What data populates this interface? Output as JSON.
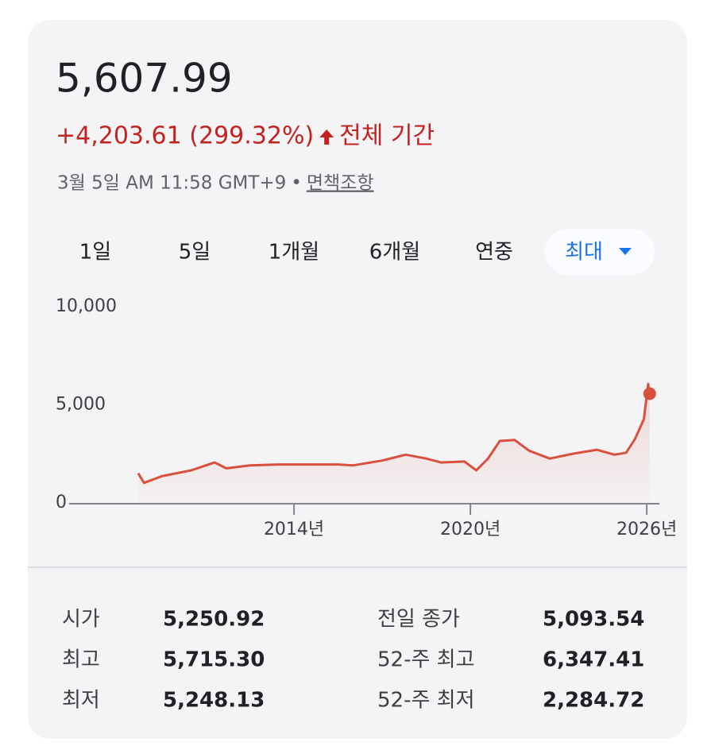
{
  "header": {
    "price": "5,607.99",
    "change": "+4,203.61 (299.32%)",
    "period": "전체 기간",
    "timestamp": "3월 5일 AM 11:58 GMT+9",
    "separator": "•",
    "disclaimer": "면책조항"
  },
  "tabs": {
    "items": [
      "1일",
      "5일",
      "1개월",
      "6개월",
      "연중",
      "최대"
    ],
    "selected": 5
  },
  "chart_data": {
    "type": "line",
    "color": "#d9503f",
    "x": [
      2008.7,
      2008.9,
      2009.5,
      2010.5,
      2011.3,
      2011.7,
      2012.5,
      2013.5,
      2014.5,
      2015.5,
      2016,
      2017,
      2017.8,
      2018.5,
      2019,
      2019.8,
      2020.2,
      2020.6,
      2021,
      2021.5,
      2022,
      2022.7,
      2023.5,
      2024.3,
      2024.9,
      2025.3,
      2025.6,
      2025.9,
      2026.05,
      2026.1
    ],
    "values": [
      1550,
      1060,
      1400,
      1700,
      2100,
      1800,
      1950,
      2000,
      2000,
      2000,
      1950,
      2200,
      2500,
      2300,
      2100,
      2150,
      1700,
      2300,
      3200,
      3250,
      2700,
      2300,
      2550,
      2750,
      2500,
      2600,
      3300,
      4300,
      6100,
      5608
    ],
    "xlim": [
      2006.35,
      2026.43
    ],
    "ylim": [
      0,
      10000
    ],
    "xticks": [
      {
        "value": 2014,
        "label": "2014년"
      },
      {
        "value": 2020,
        "label": "2020년"
      },
      {
        "value": 2026,
        "label": "2026년"
      }
    ],
    "yticks": [
      0,
      {
        "value": 5000,
        "label": "5,000"
      },
      {
        "value": 10000,
        "label": "10,000"
      }
    ]
  },
  "stats": {
    "rows": [
      [
        "시가",
        "5,250.92",
        "전일 종가",
        "5,093.54"
      ],
      [
        "최고",
        "5,715.30",
        "52-주 최고",
        "6,347.41"
      ],
      [
        "최저",
        "5,248.13",
        "52-주 최저",
        "2,284.72"
      ]
    ]
  }
}
